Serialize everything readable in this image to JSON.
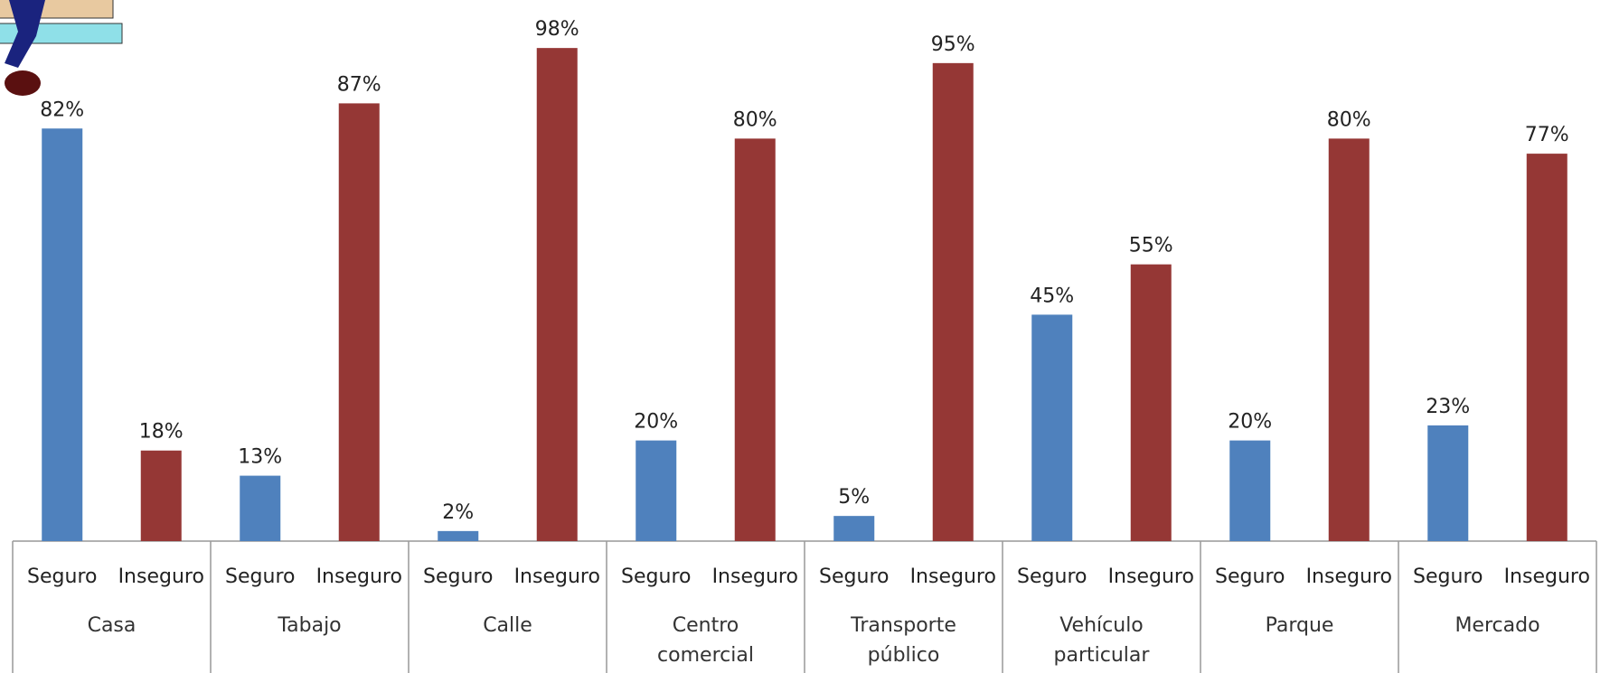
{
  "chart_data": {
    "type": "bar",
    "categories": [
      "Casa",
      "Tabajo",
      "Calle",
      "Centro comercial",
      "Transporte público",
      "Vehículo particular",
      "Parque",
      "Mercado"
    ],
    "series": [
      {
        "name": "Seguro",
        "color": "#4f81bd",
        "values": [
          82,
          13,
          2,
          20,
          5,
          45,
          20,
          23
        ],
        "value_labels": [
          "82%",
          "13%",
          "2%",
          "20%",
          "5%",
          "45%",
          "20%",
          "23%"
        ]
      },
      {
        "name": "Inseguro",
        "color": "#953735",
        "values": [
          18,
          87,
          98,
          80,
          95,
          55,
          80,
          77
        ],
        "value_labels": [
          "18%",
          "87%",
          "98%",
          "80%",
          "95%",
          "55%",
          "80%",
          "77%"
        ]
      }
    ],
    "ylim": [
      0,
      100
    ]
  }
}
